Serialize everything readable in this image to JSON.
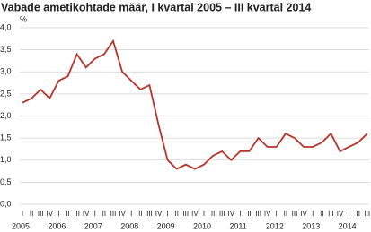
{
  "chart_data": {
    "type": "line",
    "title": "Vabade ametikohtade määr, I kvartal 2005 – III kvartal 2014",
    "y_unit": "%",
    "categories": [
      "I",
      "II",
      "III",
      "IV",
      "I",
      "II",
      "III",
      "IV",
      "I",
      "II",
      "III",
      "IV",
      "I",
      "II",
      "III",
      "IV",
      "I",
      "II",
      "III",
      "IV",
      "I",
      "II",
      "III",
      "IV",
      "I",
      "II",
      "III",
      "IV",
      "I",
      "II",
      "III",
      "IV",
      "I",
      "II",
      "III",
      "IV",
      "I",
      "II",
      "III"
    ],
    "years": [
      "2005",
      "2006",
      "2007",
      "2008",
      "2009",
      "2010",
      "2011",
      "2012",
      "2013",
      "2014"
    ],
    "series": [
      {
        "name": "Vabade ametikohtade määr",
        "color": "#b5332a",
        "values": [
          2.3,
          2.4,
          2.6,
          2.4,
          2.8,
          2.9,
          3.4,
          3.1,
          3.3,
          3.4,
          3.7,
          3.0,
          2.8,
          2.6,
          2.7,
          1.8,
          1.0,
          0.8,
          0.9,
          0.8,
          0.9,
          1.1,
          1.2,
          1.0,
          1.2,
          1.2,
          1.5,
          1.3,
          1.3,
          1.6,
          1.5,
          1.3,
          1.3,
          1.4,
          1.6,
          1.2,
          1.3,
          1.4,
          1.6
        ]
      }
    ],
    "ylim": [
      0,
      4
    ],
    "yticks": [
      {
        "value": 0,
        "label": "0,0"
      },
      {
        "value": 0.5,
        "label": "0,5"
      },
      {
        "value": 1,
        "label": "1,0"
      },
      {
        "value": 1.5,
        "label": "1,5"
      },
      {
        "value": 2,
        "label": "2,0"
      },
      {
        "value": 2.5,
        "label": "2,5"
      },
      {
        "value": 3,
        "label": "3,0"
      },
      {
        "value": 3.5,
        "label": "3,5"
      },
      {
        "value": 4,
        "label": "4,0"
      }
    ],
    "grid": true
  }
}
